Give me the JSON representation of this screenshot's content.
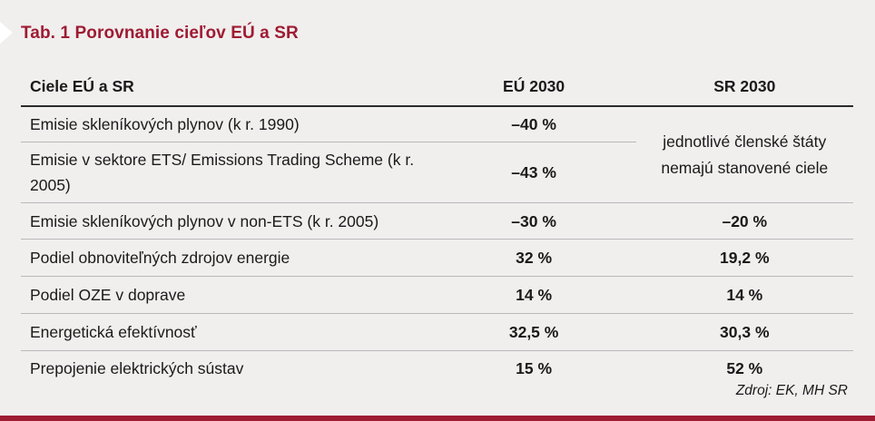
{
  "title": "Tab. 1 Porovnanie cieľov EÚ a SR",
  "table": {
    "headers": [
      "Ciele EÚ a SR",
      "EÚ 2030",
      "SR 2030"
    ],
    "rows": [
      {
        "label": "Emisie skleníkových plynov (k r. 1990)",
        "eu": "–40 %",
        "sr": ""
      },
      {
        "label": "Emisie v sektore ETS/ Emissions Trading Scheme (k r. 2005)",
        "eu": "–43 %",
        "sr": ""
      },
      {
        "label": "Emisie skleníkových plynov v non-ETS (k r. 2005)",
        "eu": "–30 %",
        "sr": "–20 %"
      },
      {
        "label": "Podiel obnoviteľných zdrojov energie",
        "eu": "32 %",
        "sr": "19,2 %"
      },
      {
        "label": "Podiel OZE v doprave",
        "eu": "14 %",
        "sr": "14 %"
      },
      {
        "label": "Energetická efektívnosť",
        "eu": "32,5 %",
        "sr": "30,3 %"
      },
      {
        "label": "Prepojenie elektrických sústav",
        "eu": "15 %",
        "sr": "52 %"
      }
    ],
    "merged_sr_note": "jednotlivé členské štáty nemajú stanovené ciele"
  },
  "source": "Zdroj: EK, MH SR",
  "colors": {
    "accent": "#9e1b32",
    "background": "#f1eeee"
  }
}
